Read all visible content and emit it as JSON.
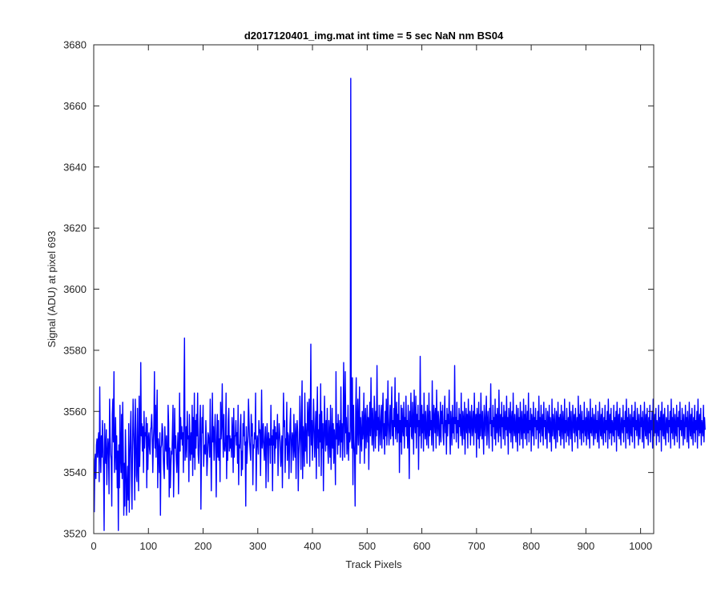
{
  "chart_data": {
    "type": "line",
    "title": "d2017120401_img.mat int time = 5 sec  NaN nm BS04",
    "xlabel": "Track Pixels",
    "ylabel": "Signal (ADU) at pixel 693",
    "xlim": [
      0,
      1024
    ],
    "ylim": [
      3520,
      3680
    ],
    "xticks": [
      0,
      100,
      200,
      300,
      400,
      500,
      600,
      700,
      800,
      900,
      1000
    ],
    "yticks": [
      3520,
      3540,
      3560,
      3580,
      3600,
      3620,
      3640,
      3660,
      3680
    ],
    "grid": false,
    "legend": "none",
    "series": [
      {
        "color": "#0000ff",
        "x_start": 1,
        "x_step": 1,
        "values": [
          3527,
          3544,
          3546,
          3538,
          3549,
          3551,
          3545,
          3550,
          3553,
          3537,
          3568,
          3548,
          3540,
          3552,
          3545,
          3557,
          3549,
          3540,
          3521,
          3556,
          3547,
          3543,
          3554,
          3536,
          3546,
          3551,
          3548,
          3533,
          3564,
          3552,
          3546,
          3544,
          3529,
          3559,
          3564,
          3550,
          3573,
          3540,
          3547,
          3558,
          3541,
          3552,
          3535,
          3547,
          3521,
          3549,
          3535,
          3562,
          3545,
          3540,
          3559,
          3538,
          3563,
          3548,
          3526,
          3543,
          3529,
          3554,
          3544,
          3526,
          3535,
          3542,
          3531,
          3556,
          3527,
          3544,
          3553,
          3560,
          3538,
          3528,
          3548,
          3564,
          3555,
          3547,
          3531,
          3564,
          3554,
          3539,
          3537,
          3561,
          3543,
          3534,
          3565,
          3542,
          3551,
          3576,
          3552,
          3556,
          3547,
          3555,
          3540,
          3560,
          3548,
          3553,
          3552,
          3558,
          3535,
          3556,
          3541,
          3551,
          3553,
          3548,
          3546,
          3554,
          3555,
          3559,
          3552,
          3540,
          3550,
          3555,
          3573,
          3548,
          3562,
          3545,
          3556,
          3567,
          3535,
          3551,
          3547,
          3540,
          3553,
          3526,
          3548,
          3549,
          3556,
          3554,
          3546,
          3541,
          3538,
          3555,
          3549,
          3547,
          3552,
          3543,
          3541,
          3562,
          3556,
          3532,
          3548,
          3535,
          3542,
          3547,
          3546,
          3554,
          3562,
          3532,
          3544,
          3561,
          3548,
          3552,
          3544,
          3540,
          3547,
          3553,
          3533,
          3545,
          3566,
          3547,
          3558,
          3551,
          3555,
          3549,
          3553,
          3540,
          3565,
          3584,
          3544,
          3549,
          3555,
          3545,
          3560,
          3551,
          3552,
          3537,
          3559,
          3550,
          3544,
          3553,
          3546,
          3562,
          3539,
          3558,
          3545,
          3566,
          3541,
          3557,
          3548,
          3559,
          3552,
          3566,
          3546,
          3543,
          3549,
          3556,
          3562,
          3528,
          3547,
          3558,
          3553,
          3562,
          3542,
          3548,
          3549,
          3546,
          3557,
          3550,
          3539,
          3544,
          3553,
          3552,
          3549,
          3545,
          3564,
          3549,
          3534,
          3550,
          3566,
          3550,
          3555,
          3544,
          3552,
          3559,
          3549,
          3532,
          3550,
          3559,
          3545,
          3557,
          3544,
          3551,
          3537,
          3563,
          3551,
          3556,
          3569,
          3552,
          3545,
          3559,
          3548,
          3547,
          3550,
          3566,
          3538,
          3552,
          3544,
          3557,
          3561,
          3547,
          3552,
          3548,
          3551,
          3545,
          3558,
          3553,
          3540,
          3561,
          3545,
          3552,
          3552,
          3557,
          3549,
          3553,
          3543,
          3562,
          3536,
          3549,
          3548,
          3555,
          3559,
          3539,
          3547,
          3541,
          3556,
          3552,
          3560,
          3549,
          3550,
          3529,
          3555,
          3543,
          3548,
          3552,
          3564,
          3557,
          3550,
          3547,
          3544,
          3559,
          3552,
          3556,
          3536,
          3549,
          3548,
          3553,
          3551,
          3566,
          3534,
          3547,
          3552,
          3550,
          3546,
          3557,
          3553,
          3554,
          3539,
          3551,
          3567,
          3548,
          3551,
          3556,
          3548,
          3544,
          3551,
          3555,
          3535,
          3549,
          3556,
          3550,
          3537,
          3553,
          3549,
          3551,
          3543,
          3562,
          3549,
          3552,
          3534,
          3554,
          3549,
          3557,
          3543,
          3555,
          3548,
          3553,
          3551,
          3559,
          3539,
          3548,
          3556,
          3553,
          3550,
          3542,
          3546,
          3552,
          3535,
          3550,
          3566,
          3555,
          3557,
          3540,
          3551,
          3549,
          3563,
          3544,
          3553,
          3552,
          3538,
          3548,
          3556,
          3561,
          3540,
          3548,
          3553,
          3551,
          3544,
          3559,
          3548,
          3545,
          3556,
          3538,
          3552,
          3557,
          3553,
          3534,
          3546,
          3551,
          3565,
          3552,
          3541,
          3559,
          3570,
          3538,
          3555,
          3551,
          3542,
          3566,
          3547,
          3556,
          3551,
          3543,
          3563,
          3557,
          3552,
          3564,
          3542,
          3556,
          3582,
          3549,
          3557,
          3544,
          3553,
          3564,
          3555,
          3545,
          3552,
          3560,
          3538,
          3556,
          3568,
          3548,
          3554,
          3542,
          3559,
          3550,
          3569,
          3539,
          3560,
          3548,
          3556,
          3534,
          3550,
          3565,
          3553,
          3547,
          3557,
          3549,
          3561,
          3548,
          3543,
          3557,
          3552,
          3545,
          3562,
          3541,
          3550,
          3561,
          3548,
          3556,
          3543,
          3554,
          3549,
          3536,
          3573,
          3551,
          3556,
          3546,
          3559,
          3549,
          3553,
          3557,
          3545,
          3568,
          3550,
          3556,
          3544,
          3551,
          3576,
          3559,
          3545,
          3573,
          3553,
          3558,
          3546,
          3549,
          3562,
          3544,
          3553,
          3550,
          3551,
          3669,
          3556,
          3548,
          3571,
          3536,
          3562,
          3550,
          3546,
          3529,
          3560,
          3571,
          3546,
          3555,
          3564,
          3549,
          3556,
          3568,
          3543,
          3558,
          3552,
          3547,
          3560,
          3551,
          3554,
          3566,
          3543,
          3557,
          3561,
          3548,
          3554,
          3562,
          3550,
          3558,
          3541,
          3557,
          3563,
          3552,
          3571,
          3556,
          3549,
          3561,
          3553,
          3547,
          3565,
          3558,
          3548,
          3560,
          3552,
          3575,
          3554,
          3558,
          3547,
          3562,
          3556,
          3549,
          3557,
          3562,
          3548,
          3559,
          3566,
          3551,
          3556,
          3546,
          3560,
          3552,
          3564,
          3549,
          3557,
          3570,
          3554,
          3549,
          3556,
          3562,
          3551,
          3559,
          3568,
          3552,
          3557,
          3549,
          3561,
          3555,
          3571,
          3551,
          3556,
          3563,
          3550,
          3559,
          3553,
          3566,
          3540,
          3557,
          3550,
          3562,
          3546,
          3561,
          3555,
          3552,
          3563,
          3548,
          3558,
          3555,
          3565,
          3552,
          3557,
          3548,
          3562,
          3554,
          3538,
          3560,
          3555,
          3566,
          3552,
          3551,
          3563,
          3556,
          3546,
          3567,
          3557,
          3553,
          3565,
          3548,
          3559,
          3555,
          3562,
          3541,
          3557,
          3552,
          3578,
          3556,
          3548,
          3562,
          3553,
          3559,
          3547,
          3566,
          3556,
          3551,
          3560,
          3553,
          3549,
          3562,
          3556,
          3548,
          3566,
          3552,
          3560,
          3554,
          3557,
          3549,
          3570,
          3555,
          3547,
          3562,
          3558,
          3553,
          3561,
          3548,
          3567,
          3556,
          3552,
          3560,
          3557,
          3549,
          3553,
          3563,
          3550,
          3560,
          3556,
          3562,
          3552,
          3549,
          3558,
          3565,
          3553,
          3557,
          3546,
          3561,
          3552,
          3559,
          3556,
          3567,
          3553,
          3546,
          3560,
          3556,
          3549,
          3562,
          3553,
          3558,
          3551,
          3575,
          3556,
          3558,
          3550,
          3563,
          3553,
          3557,
          3548,
          3561,
          3555,
          3559,
          3552,
          3566,
          3554,
          3549,
          3560,
          3557,
          3551,
          3563,
          3546,
          3556,
          3561,
          3553,
          3559,
          3548,
          3564,
          3556,
          3553,
          3560,
          3549,
          3557,
          3562,
          3552,
          3555,
          3560,
          3549,
          3566,
          3556,
          3553,
          3559,
          3545,
          3561,
          3557,
          3551,
          3563,
          3548,
          3559,
          3552,
          3566,
          3556,
          3551,
          3560,
          3554,
          3546,
          3562,
          3557,
          3552,
          3559,
          3565,
          3549,
          3556,
          3560,
          3553,
          3548,
          3561,
          3556,
          3569,
          3552,
          3557,
          3547,
          3562,
          3555,
          3558,
          3551,
          3564,
          3549,
          3559,
          3553,
          3561,
          3555,
          3550,
          3567,
          3556,
          3552,
          3559,
          3548,
          3563,
          3555,
          3558,
          3551,
          3562,
          3557,
          3549,
          3560,
          3554,
          3565,
          3552,
          3558,
          3546,
          3561,
          3556,
          3553,
          3563,
          3550,
          3557,
          3560,
          3548,
          3566,
          3555,
          3552,
          3559,
          3554,
          3550,
          3562,
          3556,
          3547,
          3561,
          3553,
          3558,
          3549,
          3563,
          3556,
          3551,
          3560,
          3555,
          3548,
          3564,
          3553,
          3559,
          3551,
          3562,
          3556,
          3549,
          3560,
          3553,
          3566,
          3550,
          3557,
          3554,
          3561,
          3547,
          3559,
          3556,
          3552,
          3563,
          3549,
          3558,
          3555,
          3561,
          3551,
          3557,
          3554,
          3560,
          3548,
          3565,
          3553,
          3558,
          3550,
          3562,
          3556,
          3552,
          3559,
          3549,
          3563,
          3555,
          3557,
          3551,
          3561,
          3554,
          3548,
          3560,
          3556,
          3553,
          3562,
          3550,
          3558,
          3555,
          3547,
          3564,
          3552,
          3559,
          3556,
          3551,
          3561,
          3553,
          3548,
          3560,
          3557,
          3550,
          3563,
          3554,
          3558,
          3552,
          3559,
          3549,
          3562,
          3555,
          3551,
          3560,
          3556,
          3548,
          3564,
          3553,
          3557,
          3550,
          3561,
          3555,
          3552,
          3558,
          3549,
          3563,
          3556,
          3551,
          3560,
          3554,
          3547,
          3562,
          3557,
          3553,
          3559,
          3550,
          3561,
          3555,
          3552,
          3558,
          3548,
          3565,
          3554,
          3559,
          3551,
          3562,
          3556,
          3549,
          3560,
          3553,
          3557,
          3550,
          3563,
          3555,
          3552,
          3558,
          3549,
          3561,
          3556,
          3551,
          3560,
          3554,
          3548,
          3564,
          3553,
          3558,
          3552,
          3561,
          3556,
          3549,
          3559,
          3555,
          3551,
          3562,
          3553,
          3557,
          3550,
          3560,
          3554,
          3548,
          3563,
          3556,
          3552,
          3559,
          3551,
          3561,
          3555,
          3549,
          3558,
          3553,
          3562,
          3550,
          3557,
          3554,
          3560,
          3548,
          3564,
          3556,
          3551,
          3559,
          3553,
          3561,
          3549,
          3557,
          3555,
          3552,
          3562,
          3550,
          3558,
          3554,
          3560,
          3547,
          3563,
          3556,
          3552,
          3559,
          3551,
          3561,
          3554,
          3549,
          3558,
          3556,
          3553,
          3562,
          3550,
          3557,
          3555,
          3560,
          3548,
          3564,
          3553,
          3558,
          3551,
          3561,
          3556,
          3549,
          3559,
          3554,
          3552,
          3562,
          3550,
          3558,
          3555,
          3560,
          3548,
          3563,
          3554,
          3557,
          3552,
          3561,
          3556,
          3549,
          3559,
          3553,
          3551,
          3562,
          3555,
          3558,
          3550,
          3560,
          3554,
          3548,
          3563,
          3556,
          3552,
          3559,
          3551,
          3561,
          3555,
          3549,
          3558,
          3553,
          3562,
          3550,
          3557,
          3554,
          3560,
          3548,
          3564,
          3556,
          3552,
          3559,
          3553,
          3561,
          3549,
          3557,
          3555,
          3552,
          3562,
          3550,
          3558,
          3554,
          3560,
          3547,
          3563,
          3556,
          3552,
          3559,
          3551,
          3561,
          3554,
          3549,
          3558,
          3556,
          3553,
          3562,
          3550,
          3557,
          3555,
          3560,
          3548,
          3564,
          3553,
          3558,
          3551,
          3561,
          3556,
          3549,
          3559,
          3554,
          3552,
          3562,
          3550,
          3558,
          3555,
          3560,
          3548,
          3563,
          3554,
          3557,
          3552,
          3561,
          3556,
          3549,
          3559,
          3553,
          3551,
          3562,
          3555,
          3558,
          3550,
          3560,
          3554,
          3548,
          3563,
          3556,
          3552,
          3559,
          3551,
          3561,
          3555,
          3549,
          3558,
          3553,
          3562,
          3550,
          3557,
          3554,
          3560,
          3548,
          3564,
          3556,
          3552,
          3559,
          3553,
          3561,
          3549,
          3557,
          3555,
          3552,
          3562,
          3550,
          3558,
          3554
        ]
      }
    ]
  }
}
